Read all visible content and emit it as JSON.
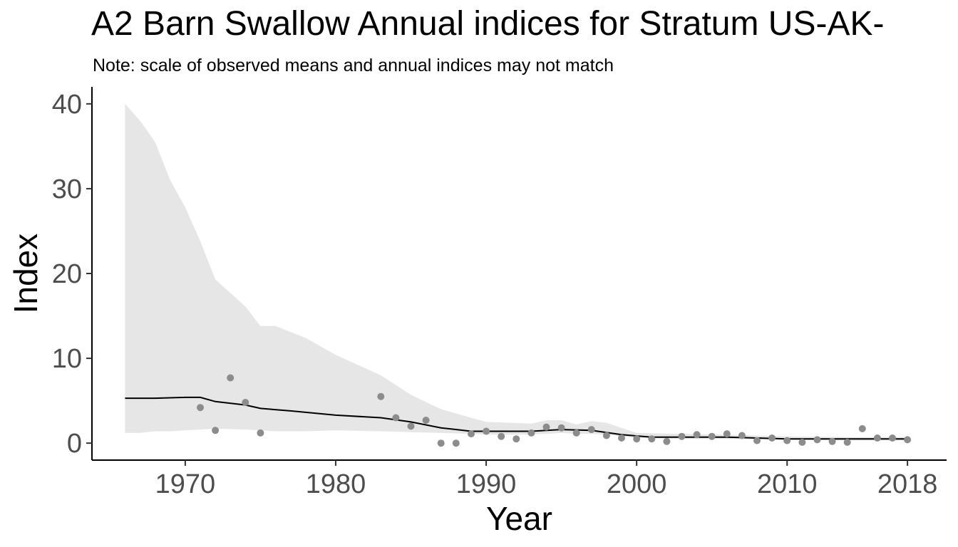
{
  "title": "A2 Barn Swallow Annual indices for Stratum US-AK-",
  "subtitle": "Note: scale of observed means and annual indices may not match",
  "chart_data": {
    "type": "line",
    "xlabel": "Year",
    "ylabel": "Index",
    "xlim": [
      1966,
      2018
    ],
    "ylim": [
      -2,
      42
    ],
    "x_ticks": [
      1970,
      1980,
      1990,
      2000,
      2010,
      2018
    ],
    "y_ticks": [
      0,
      10,
      20,
      30,
      40
    ],
    "grid": false,
    "colors": {
      "band": "#e6e6e6",
      "line": "#000000",
      "points": "#8c8c8c"
    },
    "series": [
      {
        "type": "line",
        "x": [
          1966,
          1968,
          1970,
          1971,
          1972,
          1974,
          1975,
          1977,
          1980,
          1983,
          1985,
          1987,
          1989,
          1991,
          1993,
          1995,
          1997,
          1999,
          2001,
          2003,
          2006,
          2010,
          2014,
          2018
        ],
        "values": [
          5.3,
          5.3,
          5.4,
          5.4,
          4.9,
          4.5,
          4.1,
          3.8,
          3.3,
          3.0,
          2.5,
          1.8,
          1.4,
          1.4,
          1.4,
          1.6,
          1.5,
          1.0,
          0.7,
          0.7,
          0.7,
          0.5,
          0.5,
          0.5
        ]
      },
      {
        "type": "band",
        "x": [
          1966,
          1967,
          1968,
          1969,
          1970,
          1971,
          1972,
          1974,
          1975,
          1976,
          1978,
          1980,
          1983,
          1985,
          1987,
          1989,
          1990,
          1993,
          1994,
          1995,
          1996,
          1997,
          1998,
          2000,
          2003,
          2006,
          2010,
          2014,
          2018
        ],
        "upper": [
          40.0,
          38.0,
          35.5,
          31.0,
          27.8,
          23.8,
          19.3,
          16.1,
          13.8,
          13.8,
          12.4,
          10.4,
          8.0,
          5.7,
          4.0,
          3.0,
          2.5,
          2.3,
          2.7,
          2.7,
          2.2,
          2.6,
          2.4,
          1.2,
          1.1,
          1.0,
          0.8,
          0.7,
          0.7
        ],
        "lower": [
          1.2,
          1.2,
          1.4,
          1.4,
          1.5,
          1.6,
          1.7,
          1.6,
          1.5,
          1.4,
          1.4,
          1.5,
          1.4,
          1.3,
          1.2,
          1.1,
          1.0,
          1.0,
          1.1,
          1.2,
          1.1,
          1.1,
          1.0,
          0.6,
          0.5,
          0.5,
          0.4,
          0.3,
          0.3
        ]
      },
      {
        "type": "scatter",
        "x": [
          1971,
          1972,
          1973,
          1974,
          1975,
          1983,
          1984,
          1985,
          1986,
          1987,
          1988,
          1989,
          1990,
          1991,
          1992,
          1993,
          1994,
          1995,
          1996,
          1997,
          1998,
          1999,
          2000,
          2001,
          2002,
          2003,
          2004,
          2005,
          2006,
          2007,
          2008,
          2009,
          2010,
          2011,
          2012,
          2013,
          2014,
          2015,
          2016,
          2017,
          2018
        ],
        "values": [
          4.2,
          1.5,
          7.7,
          4.8,
          1.2,
          5.5,
          3.0,
          2.0,
          2.7,
          0.0,
          0.0,
          1.1,
          1.4,
          0.8,
          0.5,
          1.2,
          1.9,
          1.8,
          1.2,
          1.6,
          0.9,
          0.6,
          0.5,
          0.5,
          0.2,
          0.8,
          1.0,
          0.8,
          1.1,
          0.9,
          0.3,
          0.6,
          0.3,
          0.1,
          0.4,
          0.2,
          0.1,
          1.7,
          0.6,
          0.6,
          0.4
        ]
      }
    ]
  }
}
